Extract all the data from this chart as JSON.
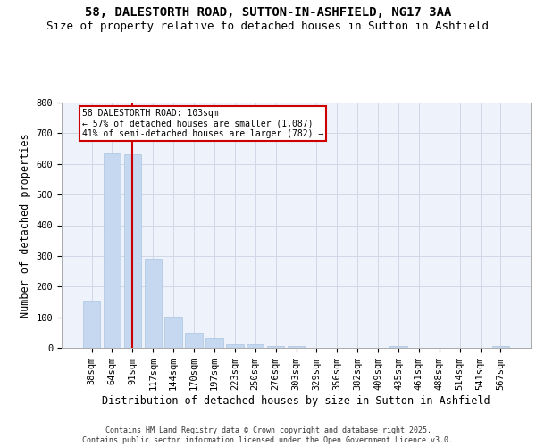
{
  "title1": "58, DALESTORTH ROAD, SUTTON-IN-ASHFIELD, NG17 3AA",
  "title2": "Size of property relative to detached houses in Sutton in Ashfield",
  "xlabel": "Distribution of detached houses by size in Sutton in Ashfield",
  "ylabel": "Number of detached properties",
  "categories": [
    "38sqm",
    "64sqm",
    "91sqm",
    "117sqm",
    "144sqm",
    "170sqm",
    "197sqm",
    "223sqm",
    "250sqm",
    "276sqm",
    "303sqm",
    "329sqm",
    "356sqm",
    "382sqm",
    "409sqm",
    "435sqm",
    "461sqm",
    "488sqm",
    "514sqm",
    "541sqm",
    "567sqm"
  ],
  "values": [
    150,
    635,
    630,
    290,
    103,
    50,
    33,
    12,
    12,
    7,
    5,
    0,
    0,
    0,
    0,
    5,
    0,
    0,
    0,
    0,
    5
  ],
  "bar_color": "#c5d8f0",
  "bar_edge_color": "#aac4e0",
  "grid_color": "#d0d8e8",
  "background_color": "#eef2fa",
  "vline_x_index": 2,
  "vline_color": "#cc0000",
  "annotation_text": "58 DALESTORTH ROAD: 103sqm\n← 57% of detached houses are smaller (1,087)\n41% of semi-detached houses are larger (782) →",
  "annotation_box_color": "#ffffff",
  "annotation_box_edge_color": "#cc0000",
  "ylim": [
    0,
    800
  ],
  "yticks": [
    0,
    100,
    200,
    300,
    400,
    500,
    600,
    700,
    800
  ],
  "footer_text": "Contains HM Land Registry data © Crown copyright and database right 2025.\nContains public sector information licensed under the Open Government Licence v3.0.",
  "title_fontsize": 10,
  "subtitle_fontsize": 9,
  "tick_fontsize": 7.5,
  "label_fontsize": 8.5,
  "footer_fontsize": 6
}
